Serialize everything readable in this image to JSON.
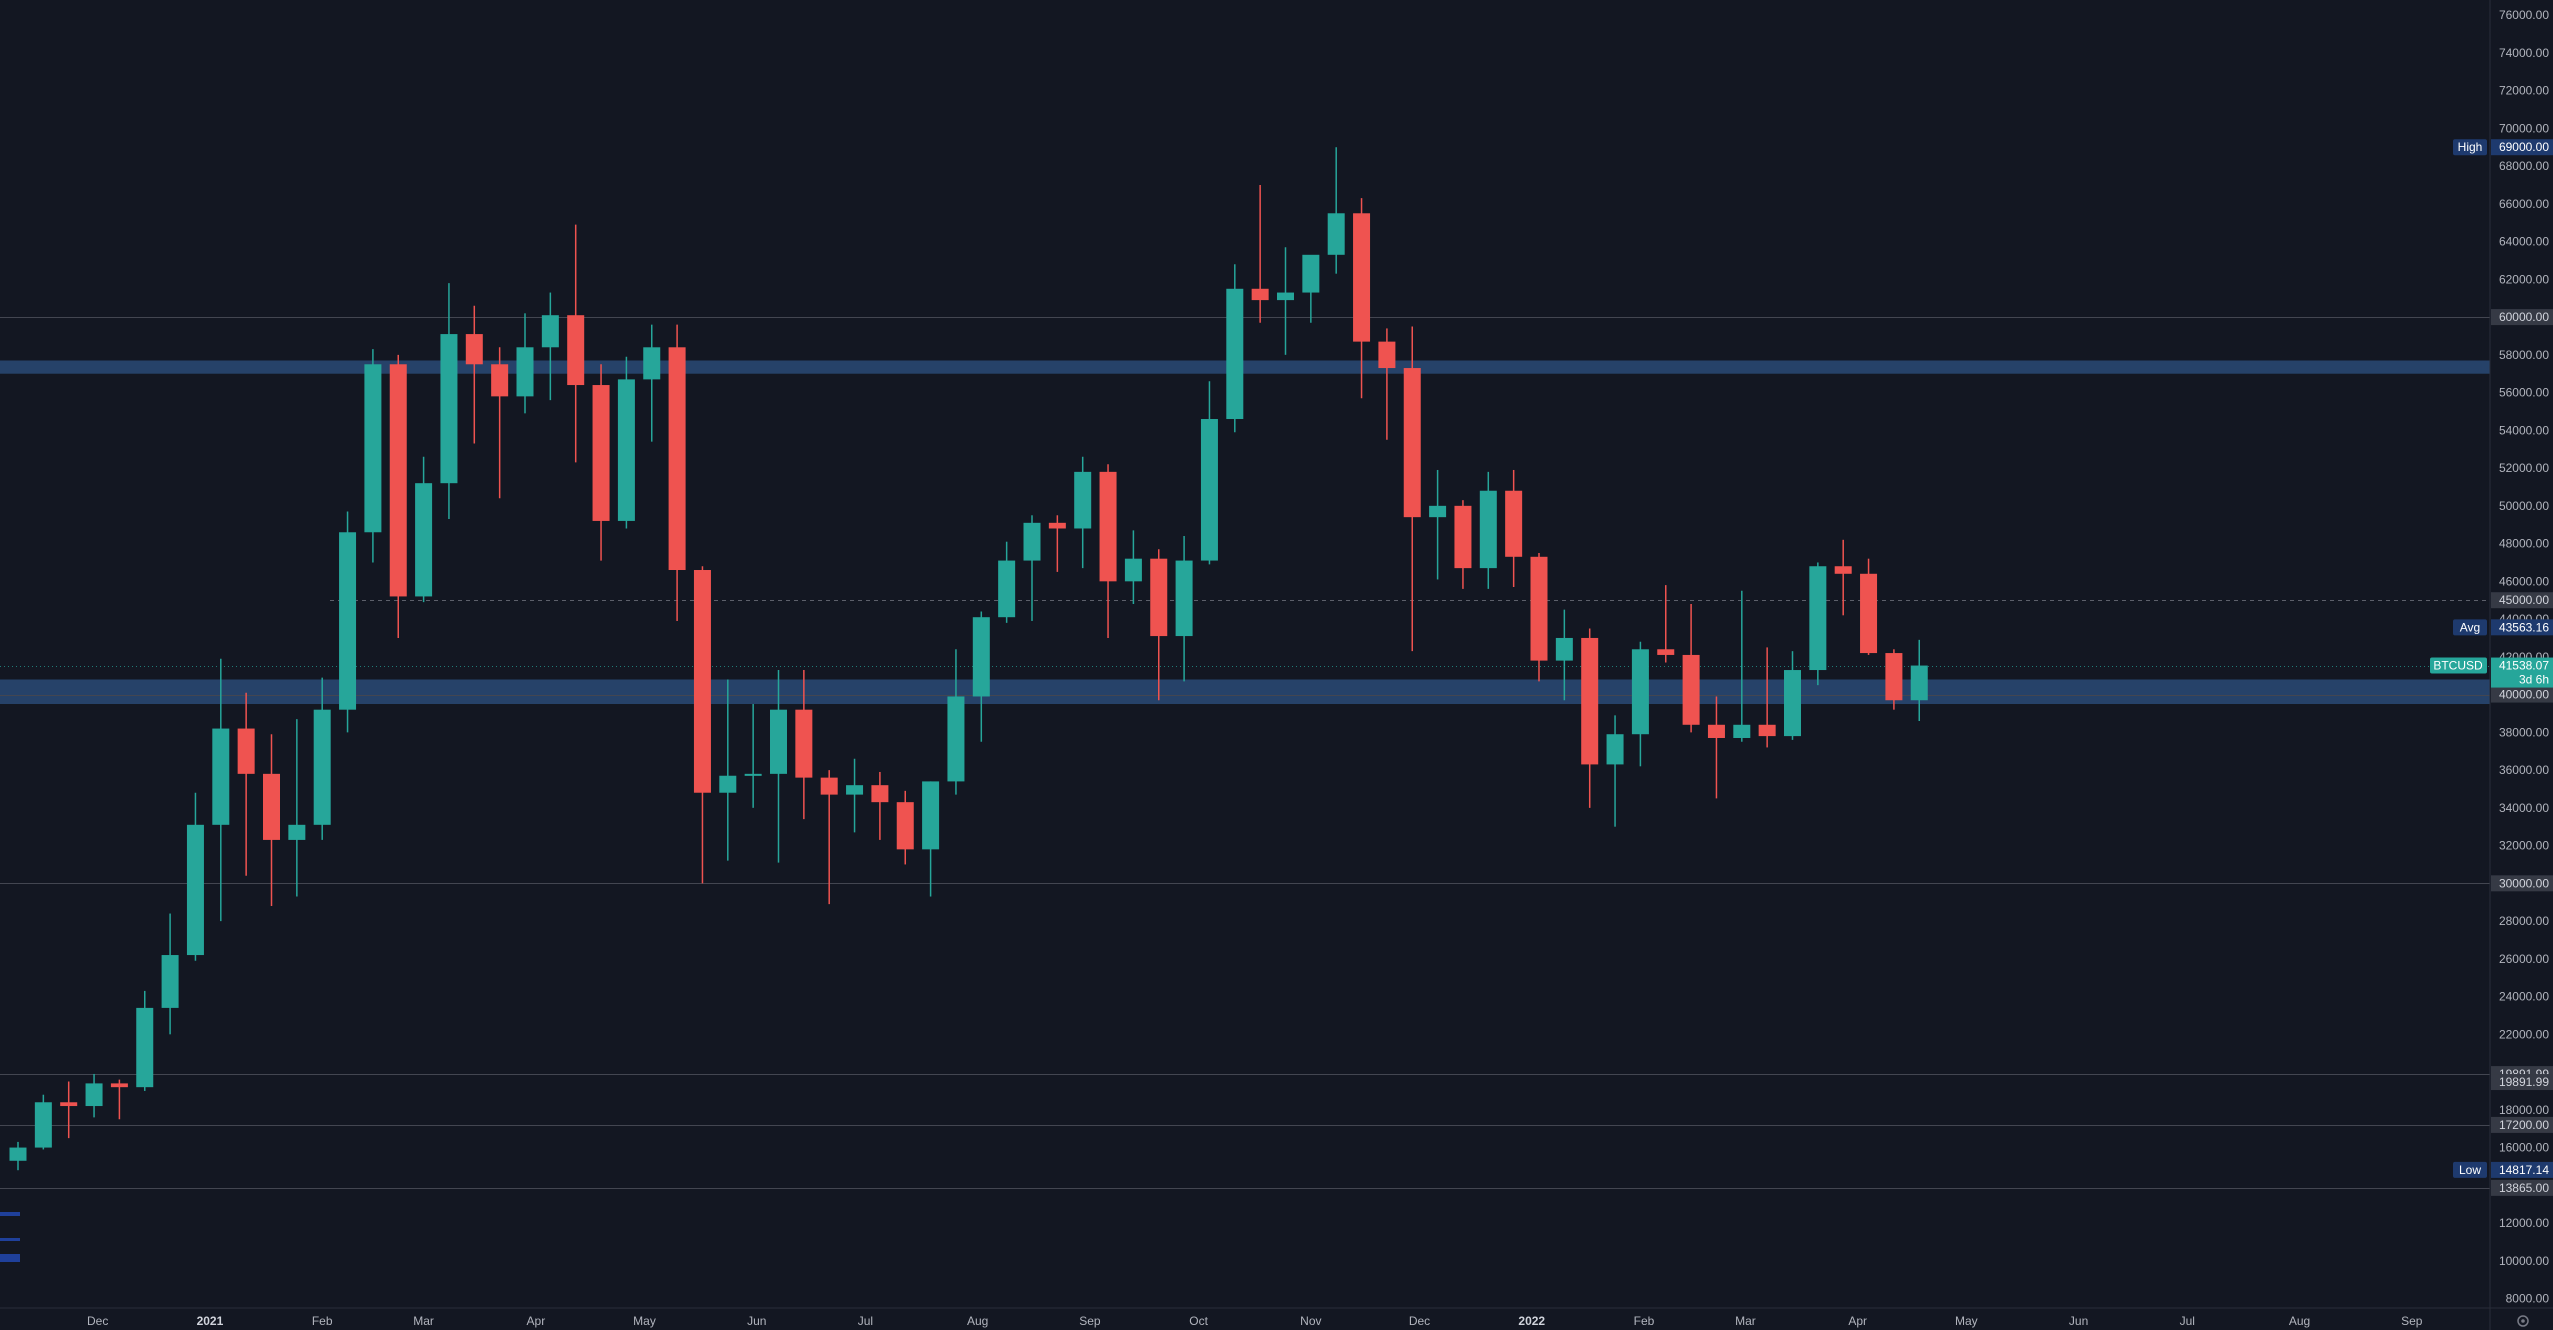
{
  "chart_data": {
    "type": "candlestick",
    "symbol": "BTCUSD",
    "ylim": [
      7500,
      76800
    ],
    "y_ticks": [
      8000,
      10000,
      12000,
      16000,
      18000,
      22000,
      24000,
      26000,
      28000,
      32000,
      34000,
      36000,
      38000,
      42000,
      44000,
      46000,
      48000,
      50000,
      52000,
      54000,
      56000,
      58000,
      62000,
      64000,
      66000,
      68000,
      70000,
      72000,
      74000,
      76000
    ],
    "x_labels": [
      {
        "label": "Dec",
        "date": "2020-12-01"
      },
      {
        "label": "2021",
        "date": "2021-01-01",
        "bold": true
      },
      {
        "label": "Feb",
        "date": "2021-02-01"
      },
      {
        "label": "Mar",
        "date": "2021-03-01"
      },
      {
        "label": "Apr",
        "date": "2021-04-01"
      },
      {
        "label": "May",
        "date": "2021-05-01"
      },
      {
        "label": "Jun",
        "date": "2021-06-01"
      },
      {
        "label": "Jul",
        "date": "2021-07-01"
      },
      {
        "label": "Aug",
        "date": "2021-08-01"
      },
      {
        "label": "Sep",
        "date": "2021-09-01"
      },
      {
        "label": "Oct",
        "date": "2021-10-01"
      },
      {
        "label": "Nov",
        "date": "2021-11-01"
      },
      {
        "label": "Dec",
        "date": "2021-12-01"
      },
      {
        "label": "2022",
        "date": "2022-01-01",
        "bold": true
      },
      {
        "label": "Feb",
        "date": "2022-02-01"
      },
      {
        "label": "Mar",
        "date": "2022-03-01"
      },
      {
        "label": "Apr",
        "date": "2022-04-01"
      },
      {
        "label": "May",
        "date": "2022-05-01"
      },
      {
        "label": "Jun",
        "date": "2022-06-01"
      },
      {
        "label": "Jul",
        "date": "2022-07-01"
      },
      {
        "label": "Aug",
        "date": "2022-08-01"
      },
      {
        "label": "Sep",
        "date": "2022-09-01"
      }
    ],
    "colors": {
      "up": "#26a69a",
      "down": "#ef5350",
      "background": "#131722",
      "zone": "#2a4a75",
      "grid": "#2a2e39"
    },
    "candles": [
      {
        "t": "2020-11-09",
        "o": 15300,
        "h": 16300,
        "l": 14800,
        "c": 16000
      },
      {
        "t": "2020-11-16",
        "o": 16000,
        "h": 18800,
        "l": 15900,
        "c": 18400
      },
      {
        "t": "2020-11-23",
        "o": 18400,
        "h": 19500,
        "l": 16500,
        "c": 18200
      },
      {
        "t": "2020-11-30",
        "o": 18200,
        "h": 19900,
        "l": 17600,
        "c": 19400
      },
      {
        "t": "2020-12-07",
        "o": 19400,
        "h": 19600,
        "l": 17500,
        "c": 19200
      },
      {
        "t": "2020-12-14",
        "o": 19200,
        "h": 24300,
        "l": 19000,
        "c": 23400
      },
      {
        "t": "2020-12-21",
        "o": 23400,
        "h": 28400,
        "l": 22000,
        "c": 26200
      },
      {
        "t": "2020-12-28",
        "o": 26200,
        "h": 34800,
        "l": 25900,
        "c": 33100
      },
      {
        "t": "2021-01-04",
        "o": 33100,
        "h": 41900,
        "l": 28000,
        "c": 38200
      },
      {
        "t": "2021-01-11",
        "o": 38200,
        "h": 40100,
        "l": 30400,
        "c": 35800
      },
      {
        "t": "2021-01-18",
        "o": 35800,
        "h": 37900,
        "l": 28800,
        "c": 32300
      },
      {
        "t": "2021-01-25",
        "o": 32300,
        "h": 38700,
        "l": 29300,
        "c": 33100
      },
      {
        "t": "2021-02-01",
        "o": 33100,
        "h": 40900,
        "l": 32300,
        "c": 39200
      },
      {
        "t": "2021-02-08",
        "o": 39200,
        "h": 49700,
        "l": 38000,
        "c": 48600
      },
      {
        "t": "2021-02-15",
        "o": 48600,
        "h": 58300,
        "l": 47000,
        "c": 57500
      },
      {
        "t": "2021-02-22",
        "o": 57500,
        "h": 58000,
        "l": 43000,
        "c": 45200
      },
      {
        "t": "2021-03-01",
        "o": 45200,
        "h": 52600,
        "l": 44900,
        "c": 51200
      },
      {
        "t": "2021-03-08",
        "o": 51200,
        "h": 61800,
        "l": 49300,
        "c": 59100
      },
      {
        "t": "2021-03-15",
        "o": 59100,
        "h": 60600,
        "l": 53300,
        "c": 57500
      },
      {
        "t": "2021-03-22",
        "o": 57500,
        "h": 58400,
        "l": 50400,
        "c": 55800
      },
      {
        "t": "2021-03-29",
        "o": 55800,
        "h": 60200,
        "l": 54900,
        "c": 58400
      },
      {
        "t": "2021-04-05",
        "o": 58400,
        "h": 61300,
        "l": 55600,
        "c": 60100
      },
      {
        "t": "2021-04-12",
        "o": 60100,
        "h": 64900,
        "l": 52300,
        "c": 56400
      },
      {
        "t": "2021-04-19",
        "o": 56400,
        "h": 57500,
        "l": 47100,
        "c": 49200
      },
      {
        "t": "2021-04-26",
        "o": 49200,
        "h": 57900,
        "l": 48800,
        "c": 56700
      },
      {
        "t": "2021-05-03",
        "o": 56700,
        "h": 59600,
        "l": 53400,
        "c": 58400
      },
      {
        "t": "2021-05-10",
        "o": 58400,
        "h": 59600,
        "l": 43900,
        "c": 46600
      },
      {
        "t": "2021-05-17",
        "o": 46600,
        "h": 46800,
        "l": 30000,
        "c": 34800
      },
      {
        "t": "2021-05-24",
        "o": 34800,
        "h": 40800,
        "l": 31200,
        "c": 35700
      },
      {
        "t": "2021-05-31",
        "o": 35700,
        "h": 39500,
        "l": 34000,
        "c": 35800
      },
      {
        "t": "2021-06-07",
        "o": 35800,
        "h": 41300,
        "l": 31100,
        "c": 39200
      },
      {
        "t": "2021-06-14",
        "o": 39200,
        "h": 41300,
        "l": 33400,
        "c": 35600
      },
      {
        "t": "2021-06-21",
        "o": 35600,
        "h": 36000,
        "l": 28900,
        "c": 34700
      },
      {
        "t": "2021-06-28",
        "o": 34700,
        "h": 36600,
        "l": 32700,
        "c": 35200
      },
      {
        "t": "2021-07-05",
        "o": 35200,
        "h": 35900,
        "l": 32300,
        "c": 34300
      },
      {
        "t": "2021-07-12",
        "o": 34300,
        "h": 34900,
        "l": 31000,
        "c": 31800
      },
      {
        "t": "2021-07-19",
        "o": 31800,
        "h": 35400,
        "l": 29300,
        "c": 35400
      },
      {
        "t": "2021-07-26",
        "o": 35400,
        "h": 42400,
        "l": 34700,
        "c": 39900
      },
      {
        "t": "2021-08-02",
        "o": 39900,
        "h": 44400,
        "l": 37500,
        "c": 44100
      },
      {
        "t": "2021-08-09",
        "o": 44100,
        "h": 48100,
        "l": 43800,
        "c": 47100
      },
      {
        "t": "2021-08-16",
        "o": 47100,
        "h": 49500,
        "l": 43900,
        "c": 49100
      },
      {
        "t": "2021-08-23",
        "o": 49100,
        "h": 49500,
        "l": 46500,
        "c": 48800
      },
      {
        "t": "2021-08-30",
        "o": 48800,
        "h": 52600,
        "l": 46700,
        "c": 51800
      },
      {
        "t": "2021-09-06",
        "o": 51800,
        "h": 52200,
        "l": 43000,
        "c": 46000
      },
      {
        "t": "2021-09-13",
        "o": 46000,
        "h": 48700,
        "l": 44800,
        "c": 47200
      },
      {
        "t": "2021-09-20",
        "o": 47200,
        "h": 47700,
        "l": 39700,
        "c": 43100
      },
      {
        "t": "2021-09-27",
        "o": 43100,
        "h": 48400,
        "l": 40700,
        "c": 47100
      },
      {
        "t": "2021-10-04",
        "o": 47100,
        "h": 56600,
        "l": 46900,
        "c": 54600
      },
      {
        "t": "2021-10-11",
        "o": 54600,
        "h": 62800,
        "l": 53900,
        "c": 61500
      },
      {
        "t": "2021-10-18",
        "o": 61500,
        "h": 67000,
        "l": 59700,
        "c": 60900
      },
      {
        "t": "2021-10-25",
        "o": 60900,
        "h": 63700,
        "l": 58000,
        "c": 61300
      },
      {
        "t": "2021-11-01",
        "o": 61300,
        "h": 63100,
        "l": 59700,
        "c": 63300
      },
      {
        "t": "2021-11-08",
        "o": 63300,
        "h": 69000,
        "l": 62300,
        "c": 65500
      },
      {
        "t": "2021-11-15",
        "o": 65500,
        "h": 66300,
        "l": 55700,
        "c": 58700
      },
      {
        "t": "2021-11-22",
        "o": 58700,
        "h": 59400,
        "l": 53500,
        "c": 57300
      },
      {
        "t": "2021-11-29",
        "o": 57300,
        "h": 59500,
        "l": 42300,
        "c": 49400
      },
      {
        "t": "2021-12-06",
        "o": 49400,
        "h": 51900,
        "l": 46100,
        "c": 50000
      },
      {
        "t": "2021-12-13",
        "o": 50000,
        "h": 50300,
        "l": 45600,
        "c": 46700
      },
      {
        "t": "2021-12-20",
        "o": 46700,
        "h": 51800,
        "l": 45600,
        "c": 50800
      },
      {
        "t": "2021-12-27",
        "o": 50800,
        "h": 51900,
        "l": 45700,
        "c": 47300
      },
      {
        "t": "2022-01-03",
        "o": 47300,
        "h": 47500,
        "l": 40700,
        "c": 41800
      },
      {
        "t": "2022-01-10",
        "o": 41800,
        "h": 44500,
        "l": 39700,
        "c": 43000
      },
      {
        "t": "2022-01-17",
        "o": 43000,
        "h": 43500,
        "l": 34000,
        "c": 36300
      },
      {
        "t": "2022-01-24",
        "o": 36300,
        "h": 38900,
        "l": 33000,
        "c": 37900
      },
      {
        "t": "2022-01-31",
        "o": 37900,
        "h": 42800,
        "l": 36200,
        "c": 42400
      },
      {
        "t": "2022-02-07",
        "o": 42400,
        "h": 45800,
        "l": 41700,
        "c": 42100
      },
      {
        "t": "2022-02-14",
        "o": 42100,
        "h": 44800,
        "l": 38000,
        "c": 38400
      },
      {
        "t": "2022-02-21",
        "o": 38400,
        "h": 39900,
        "l": 34500,
        "c": 37700
      },
      {
        "t": "2022-02-28",
        "o": 37700,
        "h": 45500,
        "l": 37500,
        "c": 38400
      },
      {
        "t": "2022-03-07",
        "o": 38400,
        "h": 42500,
        "l": 37200,
        "c": 37800
      },
      {
        "t": "2022-03-14",
        "o": 37800,
        "h": 42300,
        "l": 37600,
        "c": 41300
      },
      {
        "t": "2022-03-21",
        "o": 41300,
        "h": 47000,
        "l": 40500,
        "c": 46800
      },
      {
        "t": "2022-03-28",
        "o": 46800,
        "h": 48200,
        "l": 44200,
        "c": 46400
      },
      {
        "t": "2022-04-04",
        "o": 46400,
        "h": 47200,
        "l": 42100,
        "c": 42200
      },
      {
        "t": "2022-04-11",
        "o": 42200,
        "h": 42400,
        "l": 39200,
        "c": 39700
      },
      {
        "t": "2022-04-18",
        "o": 39700,
        "h": 42900,
        "l": 38600,
        "c": 41538
      }
    ],
    "zones": [
      {
        "from": 57000,
        "to": 57700
      },
      {
        "from": 39500,
        "to": 40800
      }
    ],
    "h_lines": [
      {
        "price": 60000,
        "label": "60000.00",
        "style": "solid"
      },
      {
        "price": 45000,
        "label": "45000.00",
        "style": "dashed"
      },
      {
        "price": 40000,
        "label": "40000.00",
        "style": "solid"
      },
      {
        "price": 30000,
        "label": "30000.00",
        "style": "solid"
      },
      {
        "price": 19891.99,
        "label": "19891.99",
        "style": "solid"
      },
      {
        "price": 17200,
        "label": "17200.00",
        "style": "solid"
      },
      {
        "price": 13865,
        "label": "13865.00",
        "style": "solid"
      }
    ],
    "tags": [
      {
        "name": "High",
        "price": 69000,
        "label": "69000.00"
      },
      {
        "name": "Avg",
        "price": 43563.16,
        "label": "43563.16"
      },
      {
        "name": "Low",
        "price": 14817.14,
        "label": "14817.14"
      }
    ],
    "current": {
      "symbol": "BTCUSD",
      "price": 41538.07,
      "label": "41538.07",
      "countdown": "3d 6h"
    },
    "extra_label": {
      "price": 19891.99,
      "label": "19891.99"
    }
  }
}
